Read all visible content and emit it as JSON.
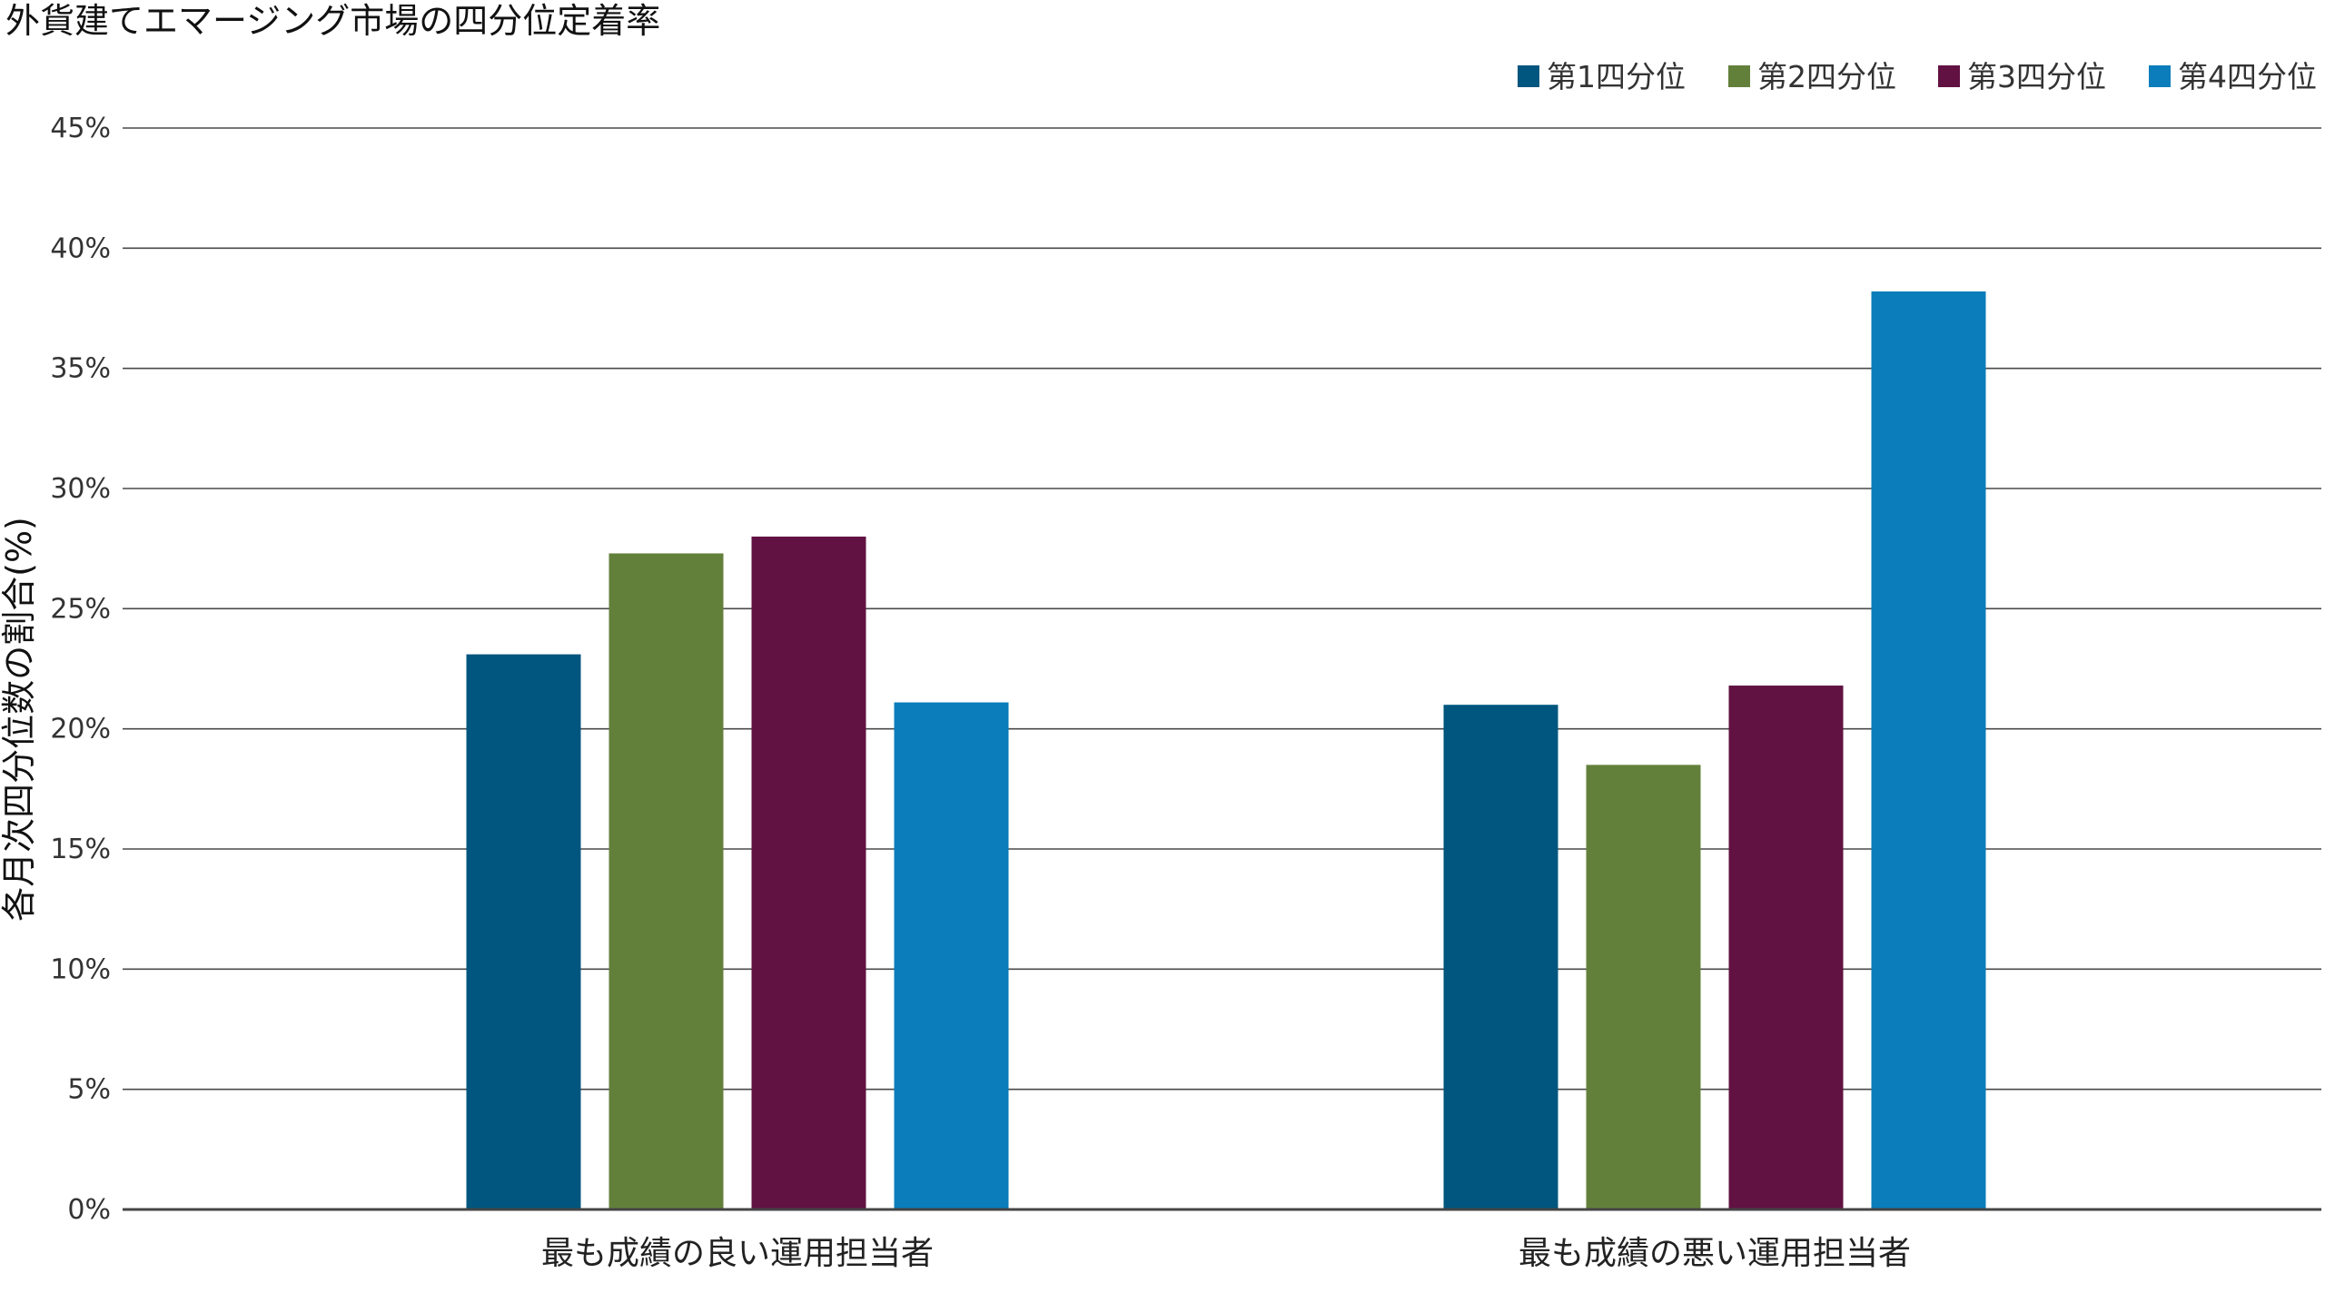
{
  "chart_data": {
    "type": "bar",
    "title": "外貨建てエマージング市場の四分位定着率",
    "xlabel": "",
    "ylabel": "各月次四分位数の割合(%)",
    "categories": [
      "最も成績の良い運用担当者",
      "最も成績の悪い運用担当者"
    ],
    "series": [
      {
        "name": "第1四分位",
        "color": "#00567e",
        "values": [
          23.1,
          21.0
        ]
      },
      {
        "name": "第2四分位",
        "color": "#63803b",
        "values": [
          27.3,
          18.5
        ]
      },
      {
        "name": "第3四分位",
        "color": "#611242",
        "values": [
          28.0,
          21.8
        ]
      },
      {
        "name": "第4四分位",
        "color": "#0a7dba",
        "values": [
          21.1,
          38.2
        ]
      }
    ],
    "ylim": [
      0,
      45
    ],
    "yticks": [
      0,
      5,
      10,
      15,
      20,
      25,
      30,
      35,
      40,
      45
    ],
    "ytick_labels": [
      "0%",
      "5%",
      "10%",
      "15%",
      "20%",
      "25%",
      "30%",
      "35%",
      "40%",
      "45%"
    ],
    "grid": true,
    "legend_position": "top-right"
  }
}
